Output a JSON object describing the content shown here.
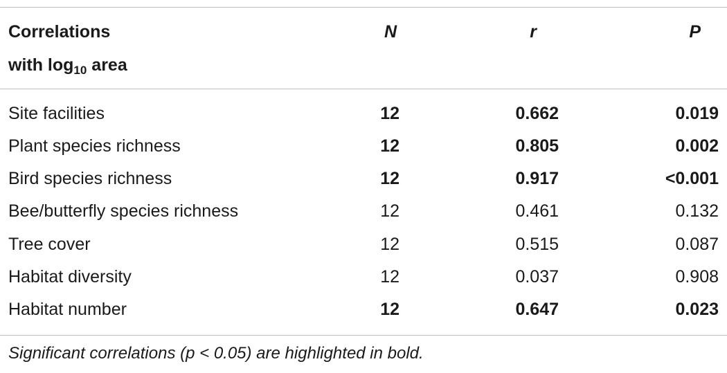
{
  "header": {
    "label_line1": "Correlations",
    "label_line2_prefix": "with log",
    "label_line2_sub": "10",
    "label_line2_suffix": " area",
    "n": "N",
    "r": "r",
    "p": "P"
  },
  "rows": [
    {
      "label": "Site facilities",
      "n": "12",
      "r": "0.662",
      "p": "0.019",
      "significant": true
    },
    {
      "label": "Plant species richness",
      "n": "12",
      "r": "0.805",
      "p": "0.002",
      "significant": true
    },
    {
      "label": "Bird species richness",
      "n": "12",
      "r": "0.917",
      "p": "<0.001",
      "significant": true
    },
    {
      "label": "Bee/butterfly species richness",
      "n": "12",
      "r": "0.461",
      "p": "0.132",
      "significant": false
    },
    {
      "label": "Tree cover",
      "n": "12",
      "r": "0.515",
      "p": "0.087",
      "significant": false
    },
    {
      "label": "Habitat diversity",
      "n": "12",
      "r": "0.037",
      "p": "0.908",
      "significant": false
    },
    {
      "label": "Habitat number",
      "n": "12",
      "r": "0.647",
      "p": "0.023",
      "significant": true
    }
  ],
  "footnote": "Significant correlations (p < 0.05) are highlighted in bold."
}
